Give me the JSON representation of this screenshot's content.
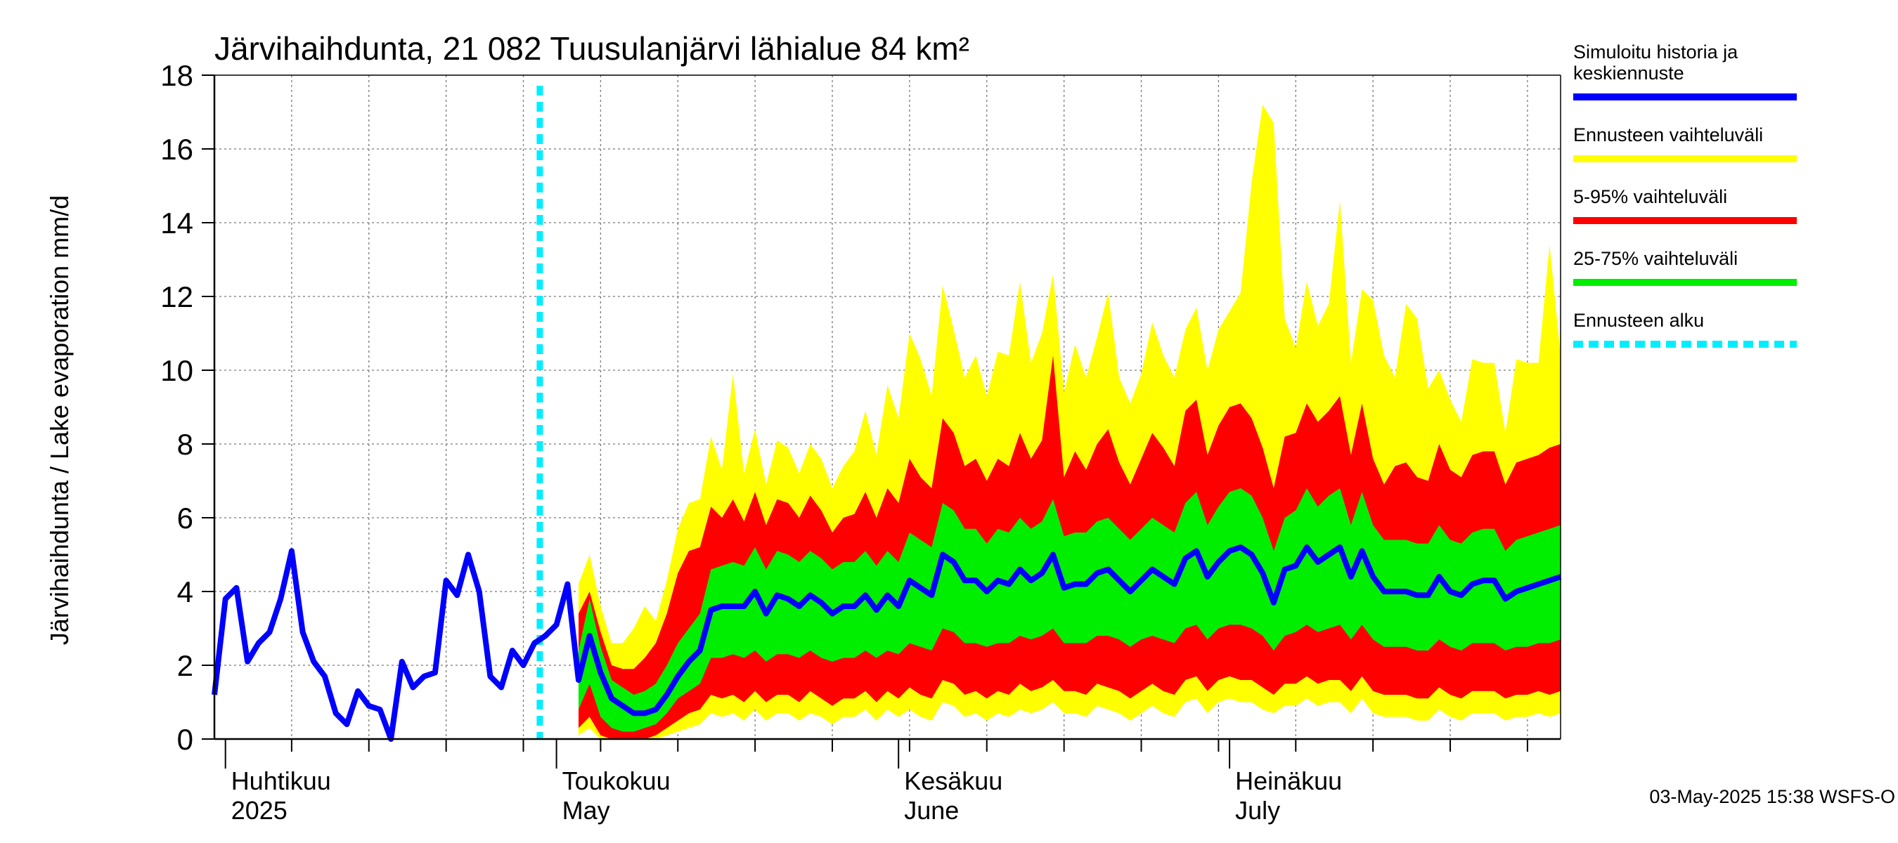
{
  "chart_data": {
    "type": "area",
    "title": "Järvihaihdunta, 21 082 Tuusulanjärvi lähialue 84 km²",
    "ylabel": "Järvihaihdunta / Lake evaporation   mm/d",
    "ylim": [
      0,
      18
    ],
    "yticks": [
      0,
      2,
      4,
      6,
      8,
      10,
      12,
      14,
      16,
      18
    ],
    "x_start": "2025-03-31",
    "x_end": "2025-07-31",
    "grid": true,
    "legend_position": "right",
    "forecast_start": "2025-04-30",
    "month_labels": [
      {
        "date": "2025-04-01",
        "lines": [
          "Huhtikuu",
          "2025"
        ]
      },
      {
        "date": "2025-05-01",
        "lines": [
          "Toukokuu",
          "May"
        ]
      },
      {
        "date": "2025-06-01",
        "lines": [
          "Kesäkuu",
          "June"
        ]
      },
      {
        "date": "2025-07-01",
        "lines": [
          "Heinäkuu",
          "July"
        ]
      }
    ],
    "history": {
      "name": "Simuloitu historia ja keskiennuste",
      "color": "#0000ff",
      "dates": [
        "2025-03-31",
        "2025-04-01",
        "2025-04-02",
        "2025-04-03",
        "2025-04-04",
        "2025-04-05",
        "2025-04-06",
        "2025-04-07",
        "2025-04-08",
        "2025-04-09",
        "2025-04-10",
        "2025-04-11",
        "2025-04-12",
        "2025-04-13",
        "2025-04-14",
        "2025-04-15",
        "2025-04-16",
        "2025-04-17",
        "2025-04-18",
        "2025-04-19",
        "2025-04-20",
        "2025-04-21",
        "2025-04-22",
        "2025-04-23",
        "2025-04-24",
        "2025-04-25",
        "2025-04-26",
        "2025-04-27",
        "2025-04-28",
        "2025-04-29",
        "2025-04-30",
        "2025-05-01",
        "2025-05-02"
      ],
      "values": [
        1.2,
        3.8,
        4.1,
        2.1,
        2.6,
        2.9,
        3.8,
        5.1,
        2.9,
        2.1,
        1.7,
        0.7,
        0.4,
        1.3,
        0.9,
        0.8,
        0.0,
        2.1,
        1.4,
        1.7,
        1.8,
        4.3,
        3.9,
        5.0,
        4.0,
        1.7,
        1.4,
        2.4,
        2.0,
        2.6,
        2.8,
        3.1,
        4.2
      ]
    },
    "forecast": {
      "dates": [
        "2025-05-03",
        "2025-05-04",
        "2025-05-05",
        "2025-05-06",
        "2025-05-07",
        "2025-05-08",
        "2025-05-09",
        "2025-05-10",
        "2025-05-11",
        "2025-05-12",
        "2025-05-13",
        "2025-05-14",
        "2025-05-15",
        "2025-05-16",
        "2025-05-17",
        "2025-05-18",
        "2025-05-19",
        "2025-05-20",
        "2025-05-21",
        "2025-05-22",
        "2025-05-23",
        "2025-05-24",
        "2025-05-25",
        "2025-05-26",
        "2025-05-27",
        "2025-05-28",
        "2025-05-29",
        "2025-05-30",
        "2025-05-31",
        "2025-06-01",
        "2025-06-02",
        "2025-06-03",
        "2025-06-04",
        "2025-06-05",
        "2025-06-06",
        "2025-06-07",
        "2025-06-08",
        "2025-06-09",
        "2025-06-10",
        "2025-06-11",
        "2025-06-12",
        "2025-06-13",
        "2025-06-14",
        "2025-06-15",
        "2025-06-16",
        "2025-06-17",
        "2025-06-18",
        "2025-06-19",
        "2025-06-20",
        "2025-06-21",
        "2025-06-22",
        "2025-06-23",
        "2025-06-24",
        "2025-06-25",
        "2025-06-26",
        "2025-06-27",
        "2025-06-28",
        "2025-06-29",
        "2025-06-30",
        "2025-07-01",
        "2025-07-02",
        "2025-07-03",
        "2025-07-04",
        "2025-07-05",
        "2025-07-06",
        "2025-07-07",
        "2025-07-08",
        "2025-07-09",
        "2025-07-10",
        "2025-07-11",
        "2025-07-12",
        "2025-07-13",
        "2025-07-14",
        "2025-07-15",
        "2025-07-16",
        "2025-07-17",
        "2025-07-18",
        "2025-07-19",
        "2025-07-20",
        "2025-07-21",
        "2025-07-22",
        "2025-07-23",
        "2025-07-24",
        "2025-07-25",
        "2025-07-26",
        "2025-07-27",
        "2025-07-28",
        "2025-07-29",
        "2025-07-30",
        "2025-07-31"
      ],
      "mean": [
        1.6,
        2.8,
        1.8,
        1.1,
        0.9,
        0.7,
        0.7,
        0.8,
        1.2,
        1.7,
        2.1,
        2.4,
        3.5,
        3.6,
        3.6,
        3.6,
        4.0,
        3.4,
        3.9,
        3.8,
        3.6,
        3.9,
        3.7,
        3.4,
        3.6,
        3.6,
        3.9,
        3.5,
        3.9,
        3.6,
        4.3,
        4.1,
        3.9,
        5.0,
        4.8,
        4.3,
        4.3,
        4.0,
        4.3,
        4.2,
        4.6,
        4.3,
        4.5,
        5.0,
        4.1,
        4.2,
        4.2,
        4.5,
        4.6,
        4.3,
        4.0,
        4.3,
        4.6,
        4.4,
        4.2,
        4.9,
        5.1,
        4.4,
        4.8,
        5.1,
        5.2,
        5.0,
        4.5,
        3.7,
        4.6,
        4.7,
        5.2,
        4.8,
        5.0,
        5.2,
        4.4,
        5.1,
        4.4,
        4.0,
        4.0,
        4.0,
        3.9,
        3.9,
        4.4,
        4.0,
        3.9,
        4.2,
        4.3,
        4.3,
        3.8,
        4.0,
        4.1,
        4.2,
        4.3,
        4.4
      ],
      "p25": [
        0.8,
        1.5,
        0.6,
        0.3,
        0.2,
        0.2,
        0.3,
        0.4,
        0.7,
        1.1,
        1.3,
        1.5,
        2.2,
        2.2,
        2.3,
        2.2,
        2.4,
        2.1,
        2.3,
        2.3,
        2.2,
        2.4,
        2.2,
        2.1,
        2.2,
        2.2,
        2.4,
        2.2,
        2.4,
        2.3,
        2.6,
        2.5,
        2.4,
        3.0,
        2.9,
        2.6,
        2.6,
        2.5,
        2.6,
        2.6,
        2.8,
        2.7,
        2.8,
        3.0,
        2.6,
        2.6,
        2.6,
        2.8,
        2.8,
        2.7,
        2.5,
        2.7,
        2.8,
        2.7,
        2.6,
        3.0,
        3.1,
        2.7,
        3.0,
        3.1,
        3.1,
        3.0,
        2.8,
        2.4,
        2.8,
        2.9,
        3.1,
        2.9,
        3.0,
        3.1,
        2.7,
        3.1,
        2.7,
        2.5,
        2.5,
        2.5,
        2.4,
        2.4,
        2.7,
        2.5,
        2.4,
        2.6,
        2.6,
        2.6,
        2.4,
        2.5,
        2.5,
        2.6,
        2.6,
        2.7
      ],
      "p75": [
        2.4,
        3.8,
        2.5,
        1.6,
        1.4,
        1.2,
        1.3,
        1.5,
        2.0,
        2.6,
        3.0,
        3.4,
        4.6,
        4.7,
        4.8,
        4.7,
        5.2,
        4.6,
        5.1,
        5.0,
        4.8,
        5.1,
        4.9,
        4.6,
        4.8,
        4.8,
        5.1,
        4.7,
        5.1,
        4.8,
        5.6,
        5.4,
        5.2,
        6.4,
        6.2,
        5.7,
        5.7,
        5.3,
        5.7,
        5.6,
        6.0,
        5.7,
        5.9,
        6.5,
        5.5,
        5.6,
        5.6,
        5.9,
        6.0,
        5.7,
        5.4,
        5.7,
        6.0,
        5.8,
        5.6,
        6.4,
        6.7,
        5.8,
        6.3,
        6.7,
        6.8,
        6.6,
        6.0,
        5.1,
        6.0,
        6.2,
        6.8,
        6.3,
        6.6,
        6.8,
        5.8,
        6.7,
        5.8,
        5.4,
        5.4,
        5.4,
        5.3,
        5.3,
        5.8,
        5.4,
        5.3,
        5.6,
        5.7,
        5.7,
        5.1,
        5.4,
        5.5,
        5.6,
        5.7,
        5.8
      ],
      "p5": [
        0.3,
        0.6,
        0.1,
        0.0,
        0.0,
        0.0,
        0.0,
        0.1,
        0.3,
        0.5,
        0.7,
        0.8,
        1.2,
        1.1,
        1.2,
        1.0,
        1.3,
        1.0,
        1.2,
        1.2,
        1.0,
        1.3,
        1.1,
        0.9,
        1.1,
        1.1,
        1.3,
        1.0,
        1.3,
        1.1,
        1.4,
        1.2,
        1.1,
        1.6,
        1.5,
        1.2,
        1.3,
        1.1,
        1.3,
        1.2,
        1.5,
        1.3,
        1.4,
        1.6,
        1.3,
        1.3,
        1.2,
        1.5,
        1.4,
        1.3,
        1.1,
        1.3,
        1.5,
        1.3,
        1.2,
        1.6,
        1.7,
        1.3,
        1.6,
        1.7,
        1.6,
        1.6,
        1.4,
        1.2,
        1.5,
        1.5,
        1.7,
        1.5,
        1.6,
        1.6,
        1.3,
        1.7,
        1.3,
        1.2,
        1.2,
        1.2,
        1.1,
        1.1,
        1.4,
        1.2,
        1.1,
        1.3,
        1.3,
        1.3,
        1.1,
        1.2,
        1.2,
        1.3,
        1.2,
        1.3
      ],
      "p95": [
        3.4,
        4.0,
        2.9,
        2.0,
        1.9,
        1.9,
        2.2,
        2.6,
        3.4,
        4.5,
        5.1,
        5.2,
        6.3,
        6.0,
        6.5,
        5.9,
        6.7,
        5.8,
        6.5,
        6.4,
        6.0,
        6.6,
        6.2,
        5.6,
        6.0,
        6.1,
        6.7,
        6.0,
        6.8,
        6.4,
        7.6,
        7.1,
        6.8,
        8.7,
        8.3,
        7.4,
        7.6,
        7.0,
        7.6,
        7.4,
        8.3,
        7.6,
        8.1,
        10.4,
        7.1,
        7.8,
        7.3,
        8.0,
        8.4,
        7.5,
        6.9,
        7.6,
        8.3,
        7.9,
        7.4,
        8.9,
        9.2,
        7.7,
        8.5,
        9.0,
        9.1,
        8.7,
        7.9,
        6.8,
        8.2,
        8.3,
        9.1,
        8.6,
        8.9,
        9.3,
        7.7,
        9.1,
        7.6,
        6.9,
        7.4,
        7.5,
        7.1,
        7.0,
        8.0,
        7.3,
        7.1,
        7.7,
        7.8,
        7.8,
        6.9,
        7.5,
        7.6,
        7.7,
        7.9,
        8.0
      ],
      "min": [
        0.1,
        0.3,
        0.0,
        0.0,
        0.0,
        0.0,
        0.0,
        0.0,
        0.1,
        0.2,
        0.3,
        0.4,
        0.7,
        0.6,
        0.7,
        0.5,
        0.8,
        0.5,
        0.7,
        0.7,
        0.5,
        0.7,
        0.6,
        0.4,
        0.6,
        0.6,
        0.8,
        0.5,
        0.8,
        0.6,
        0.8,
        0.6,
        0.5,
        1.0,
        0.9,
        0.6,
        0.7,
        0.5,
        0.7,
        0.6,
        0.8,
        0.7,
        0.8,
        1.0,
        0.7,
        0.7,
        0.6,
        0.9,
        0.8,
        0.7,
        0.5,
        0.7,
        0.9,
        0.7,
        0.6,
        1.0,
        1.1,
        0.7,
        1.0,
        1.1,
        1.0,
        1.0,
        0.8,
        0.7,
        0.9,
        0.9,
        1.1,
        0.9,
        1.0,
        1.0,
        0.7,
        1.1,
        0.7,
        0.6,
        0.6,
        0.6,
        0.5,
        0.5,
        0.8,
        0.6,
        0.5,
        0.7,
        0.7,
        0.7,
        0.5,
        0.6,
        0.6,
        0.7,
        0.6,
        0.7
      ],
      "max": [
        4.2,
        5.0,
        3.6,
        2.6,
        2.6,
        3.0,
        3.6,
        3.2,
        4.3,
        5.7,
        6.4,
        6.5,
        8.2,
        7.3,
        9.9,
        7.2,
        8.4,
        6.9,
        8.1,
        7.9,
        7.2,
        8.0,
        7.6,
        6.8,
        7.4,
        7.8,
        8.9,
        7.7,
        9.6,
        8.7,
        11.0,
        10.3,
        9.3,
        12.3,
        11.1,
        9.8,
        10.4,
        9.3,
        10.5,
        10.4,
        12.4,
        10.2,
        11.0,
        12.6,
        9.4,
        10.7,
        9.8,
        10.9,
        12.1,
        9.8,
        9.1,
        9.9,
        11.3,
        10.4,
        9.8,
        11.1,
        11.7,
        10.0,
        11.1,
        11.6,
        12.1,
        15.1,
        17.2,
        16.7,
        11.4,
        10.6,
        12.4,
        11.2,
        11.8,
        14.6,
        10.2,
        12.2,
        11.9,
        10.4,
        9.8,
        11.8,
        11.4,
        9.5,
        10.0,
        9.2,
        8.6,
        10.3,
        10.2,
        10.2,
        8.3,
        10.3,
        10.2,
        10.2,
        13.4,
        10.4
      ]
    }
  },
  "legend": [
    {
      "label": "Simuloitu historia ja keskiennuste",
      "lines": [
        "Simuloitu historia ja",
        "keskiennuste"
      ],
      "color": "#0000ff",
      "style": "solid"
    },
    {
      "label": "Ennusteen vaihteluväli",
      "lines": [
        "Ennusteen vaihteluväli"
      ],
      "color": "#ffff00",
      "style": "solid"
    },
    {
      "label": "5-95% vaihteluväli",
      "lines": [
        "5-95% vaihteluväli"
      ],
      "color": "#ff0000",
      "style": "solid"
    },
    {
      "label": "25-75% vaihteluväli",
      "lines": [
        "25-75% vaihteluväli"
      ],
      "color": "#00ee00",
      "style": "solid"
    },
    {
      "label": "Ennusteen alku",
      "lines": [
        "Ennusteen alku"
      ],
      "color": "#00eeff",
      "style": "dashed"
    }
  ],
  "footer": "03-May-2025 15:38 WSFS-O",
  "colors": {
    "history": "#0000ff",
    "range": "#ffff00",
    "p5_95": "#ff0000",
    "p25_75": "#00ee00",
    "forecast_start": "#00eeff",
    "grid": "#777777",
    "axis": "#000000"
  }
}
